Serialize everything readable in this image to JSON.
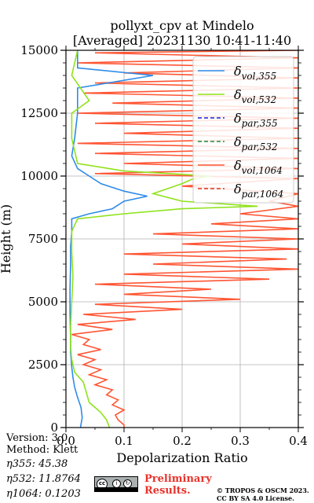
{
  "title_line1": "pollyxt_cpv at Mindelo",
  "title_line2": "[Averaged] 20231130 10:41-11:40",
  "info": {
    "version": "Version: 3.0",
    "method": "Method: Klett",
    "eta355": "η355:  45.38",
    "eta532": "η532: 11.8764",
    "eta1064": "η1064: 0.1203"
  },
  "preliminary_line1": "Preliminary",
  "preliminary_line2": "Results.",
  "copyright_line1": "© TROPOS & OSCM 2023.",
  "copyright_line2": "CC BY SA 4.0 License.",
  "license_badge": {
    "icon": "cc-by-sa-icon",
    "text": "cc"
  },
  "colors": {
    "vol355": "#2e8be8",
    "vol532": "#8fe31a",
    "par355": "#1a1ad9",
    "par532": "#1e8a3a",
    "vol1064": "#ff5533",
    "par1064": "#d9341a"
  },
  "chart_data": {
    "type": "line",
    "title": "pollyxt_cpv at Mindelo\n[Averaged] 20231130 10:41-11:40",
    "xlabel": "Depolarization Ratio",
    "ylabel": "Height (m)",
    "xlim": [
      0,
      0.4
    ],
    "ylim": [
      0,
      15000
    ],
    "xticks": [
      "0.0",
      "0.1",
      "0.2",
      "0.3",
      "0.4"
    ],
    "yticks": [
      "0",
      "2500",
      "5000",
      "7500",
      "10000",
      "12500",
      "15000"
    ],
    "grid": true,
    "legend_position": "top-right",
    "legend": [
      {
        "base": "δ",
        "sub": "vol,355",
        "style": "solid",
        "color": "#2e8be8"
      },
      {
        "base": "δ",
        "sub": "vol,532",
        "style": "solid",
        "color": "#8fe31a"
      },
      {
        "base": "δ",
        "sub": "par,355",
        "style": "dashed",
        "color": "#1a1ad9"
      },
      {
        "base": "δ",
        "sub": "par,532",
        "style": "dashed",
        "color": "#1e8a3a"
      },
      {
        "base": "δ",
        "sub": "vol,1064",
        "style": "solid",
        "color": "#ff5533"
      },
      {
        "base": "δ",
        "sub": "par,1064",
        "style": "dashed",
        "color": "#d9341a"
      }
    ],
    "series": [
      {
        "name": "δvol,355",
        "points": [
          [
            0.025,
            0
          ],
          [
            0.028,
            400
          ],
          [
            0.026,
            800
          ],
          [
            0.02,
            1200
          ],
          [
            0.015,
            1600
          ],
          [
            0.012,
            2000
          ],
          [
            0.01,
            2400
          ],
          [
            0.008,
            3000
          ],
          [
            0.008,
            3600
          ],
          [
            0.007,
            4500
          ],
          [
            0.007,
            5500
          ],
          [
            0.008,
            6500
          ],
          [
            0.008,
            7200
          ],
          [
            0.01,
            7800
          ],
          [
            0.01,
            8300
          ],
          [
            0.04,
            8500
          ],
          [
            0.08,
            8700
          ],
          [
            0.1,
            9000
          ],
          [
            0.14,
            9200
          ],
          [
            0.1,
            9400
          ],
          [
            0.06,
            9700
          ],
          [
            0.04,
            10000
          ],
          [
            0.02,
            10300
          ],
          [
            0.01,
            10800
          ],
          [
            0.015,
            11500
          ],
          [
            0.02,
            12500
          ],
          [
            0.02,
            13500
          ],
          [
            0.15,
            14000
          ],
          [
            0.02,
            14300
          ],
          [
            0.02,
            15000
          ]
        ]
      },
      {
        "name": "δvol,532",
        "points": [
          [
            0.075,
            0
          ],
          [
            0.07,
            300
          ],
          [
            0.06,
            600
          ],
          [
            0.04,
            1000
          ],
          [
            0.035,
            1400
          ],
          [
            0.03,
            1800
          ],
          [
            0.015,
            2200
          ],
          [
            0.01,
            2700
          ],
          [
            0.008,
            3200
          ],
          [
            0.008,
            4000
          ],
          [
            0.01,
            5000
          ],
          [
            0.012,
            6000
          ],
          [
            0.01,
            7000
          ],
          [
            0.01,
            7800
          ],
          [
            0.02,
            8300
          ],
          [
            0.1,
            8500
          ],
          [
            0.2,
            8700
          ],
          [
            0.33,
            8800
          ],
          [
            0.2,
            9000
          ],
          [
            0.15,
            9300
          ],
          [
            0.2,
            9700
          ],
          [
            0.22,
            9900
          ],
          [
            0.25,
            10000
          ],
          [
            0.1,
            10200
          ],
          [
            0.02,
            10500
          ],
          [
            0.01,
            11500
          ],
          [
            0.01,
            12500
          ],
          [
            0.04,
            13000
          ],
          [
            0.01,
            14000
          ],
          [
            0.02,
            15000
          ]
        ]
      },
      {
        "name": "δvol,1064",
        "points": [
          [
            0.1,
            0
          ],
          [
            0.1,
            100
          ],
          [
            0.09,
            300
          ],
          [
            0.085,
            500
          ],
          [
            0.1,
            700
          ],
          [
            0.08,
            900
          ],
          [
            0.09,
            1100
          ],
          [
            0.07,
            1300
          ],
          [
            0.08,
            1500
          ],
          [
            0.05,
            1700
          ],
          [
            0.07,
            1900
          ],
          [
            0.04,
            2100
          ],
          [
            0.06,
            2300
          ],
          [
            0.03,
            2500
          ],
          [
            0.05,
            2700
          ],
          [
            0.02,
            2900
          ],
          [
            0.06,
            3100
          ],
          [
            0.03,
            3300
          ],
          [
            0.04,
            3500
          ],
          [
            0.01,
            3700
          ],
          [
            0.08,
            3900
          ],
          [
            0.02,
            4100
          ],
          [
            0.12,
            4300
          ],
          [
            0.03,
            4500
          ],
          [
            0.2,
            4700
          ],
          [
            0.05,
            4900
          ],
          [
            0.3,
            5100
          ],
          [
            0.1,
            5300
          ],
          [
            0.25,
            5500
          ],
          [
            0.05,
            5700
          ],
          [
            0.35,
            5900
          ],
          [
            0.1,
            6100
          ],
          [
            0.4,
            6300
          ],
          [
            0.15,
            6500
          ],
          [
            0.38,
            6700
          ],
          [
            0.1,
            6900
          ],
          [
            0.4,
            7100
          ],
          [
            0.2,
            7300
          ],
          [
            0.4,
            7500
          ],
          [
            0.15,
            7700
          ],
          [
            0.4,
            7900
          ],
          [
            0.25,
            8100
          ],
          [
            0.4,
            8300
          ],
          [
            0.3,
            8500
          ],
          [
            0.4,
            8800
          ],
          [
            0.35,
            9000
          ],
          [
            0.4,
            9300
          ],
          [
            0.2,
            9600
          ],
          [
            0.4,
            9900
          ],
          [
            0.05,
            10100
          ],
          [
            0.4,
            10300
          ],
          [
            0.1,
            10500
          ],
          [
            0.4,
            10700
          ],
          [
            0.05,
            10900
          ],
          [
            0.4,
            11100
          ],
          [
            0.02,
            11300
          ],
          [
            0.4,
            11500
          ],
          [
            0.1,
            11700
          ],
          [
            0.4,
            11900
          ],
          [
            0.05,
            12100
          ],
          [
            0.4,
            12300
          ],
          [
            0.02,
            12500
          ],
          [
            0.4,
            12700
          ],
          [
            0.08,
            12900
          ],
          [
            0.4,
            13100
          ],
          [
            0.03,
            13300
          ],
          [
            0.4,
            13500
          ],
          [
            0.05,
            13700
          ],
          [
            0.4,
            13900
          ],
          [
            0.1,
            14100
          ],
          [
            0.4,
            14300
          ],
          [
            0.02,
            14500
          ],
          [
            0.4,
            14700
          ],
          [
            0.05,
            14900
          ],
          [
            0.4,
            15000
          ]
        ]
      }
    ]
  }
}
